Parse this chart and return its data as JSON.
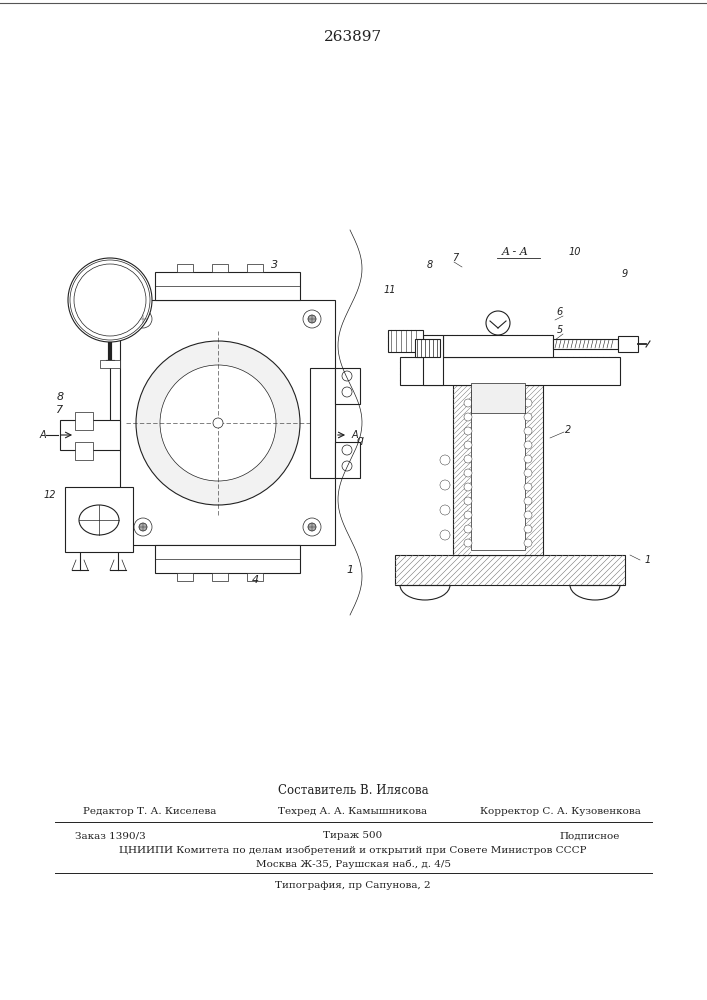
{
  "patent_number": "263897",
  "section_label": "A - A",
  "composer_line": "Составитель В. Илясова",
  "editor_line_1": "Редактор Т. А. Киселева",
  "editor_line_2": "Техред А. А. Камышникова",
  "editor_line_3": "Корректор С. А. Кузовенкова",
  "order_text": "Заказ 1390/3",
  "tirazh_text": "Тираж 500",
  "podpisnoe_text": "Подписное",
  "org_line": "ЦНИИПИ Комитета по делам изобретений и открытий при Совете Министров СССР",
  "address_line": "Москва Ж-35, Раушская наб., д. 4/5",
  "print_line": "Типография, пр Сапунова, 2",
  "bg_color": "#ffffff",
  "line_color": "#222222"
}
